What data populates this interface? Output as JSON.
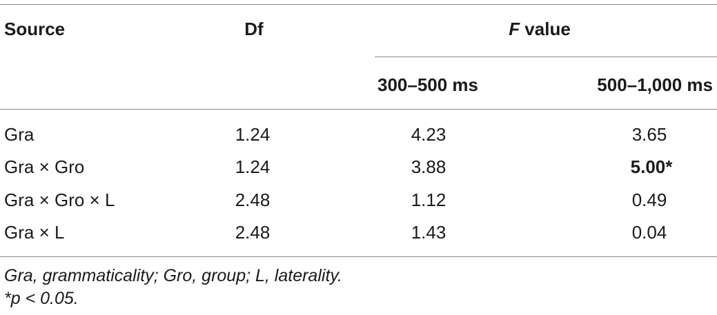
{
  "table": {
    "headers": {
      "source": "Source",
      "df": "Df",
      "f_value_prefix": "F",
      "f_value_suffix": " value",
      "sub_col1": "300–500 ms",
      "sub_col2": "500–1,000 ms"
    },
    "rows": [
      {
        "source": "Gra",
        "df": "1.24",
        "v1": "4.23",
        "v2": "3.65",
        "v2_bold": false
      },
      {
        "source": "Gra × Gro",
        "df": "1.24",
        "v1": "3.88",
        "v2": "5.00*",
        "v2_bold": true
      },
      {
        "source": "Gra × Gro × L",
        "df": "2.48",
        "v1": "1.12",
        "v2": "0.49",
        "v2_bold": false
      },
      {
        "source": "Gra × L",
        "df": "2.48",
        "v1": "1.43",
        "v2": "0.04",
        "v2_bold": false
      }
    ]
  },
  "footnotes": {
    "abbreviations": "Gra, grammaticality; Gro, group; L, laterality.",
    "significance": "*p < 0.05."
  }
}
